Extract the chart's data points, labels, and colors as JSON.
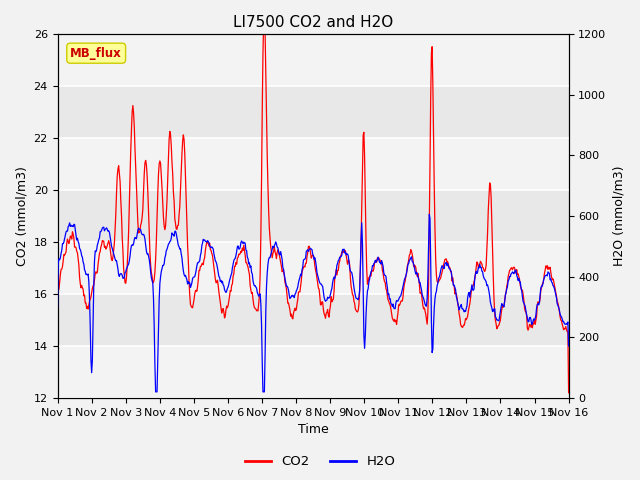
{
  "title": "LI7500 CO2 and H2O",
  "xlabel": "Time",
  "ylabel_left": "CO2 (mmol/m3)",
  "ylabel_right": "H2O (mmol/m3)",
  "ylim_left": [
    12,
    26
  ],
  "ylim_right": [
    0,
    1200
  ],
  "yticks_left": [
    12,
    14,
    16,
    18,
    20,
    22,
    24,
    26
  ],
  "yticks_right": [
    0,
    200,
    400,
    600,
    800,
    1000,
    1200
  ],
  "xtick_labels": [
    "Nov 1",
    "Nov 2",
    "Nov 3",
    "Nov 4",
    "Nov 5",
    "Nov 6",
    "Nov 7",
    "Nov 8",
    "Nov 9",
    "Nov 10",
    "Nov 11",
    "Nov 12",
    "Nov 13",
    "Nov 14",
    "Nov 15",
    "Nov 16"
  ],
  "co2_color": "#FF0000",
  "h2o_color": "#0000FF",
  "fig_bg_color": "#F2F2F2",
  "plot_bg_color": "#E8E8E8",
  "annotation_text": "MB_flux",
  "annotation_bg": "#FFFF99",
  "annotation_border": "#CCCC00",
  "legend_co2": "CO2",
  "legend_h2o": "H2O",
  "title_fontsize": 11,
  "label_fontsize": 9,
  "tick_fontsize": 8,
  "line_width": 0.9
}
